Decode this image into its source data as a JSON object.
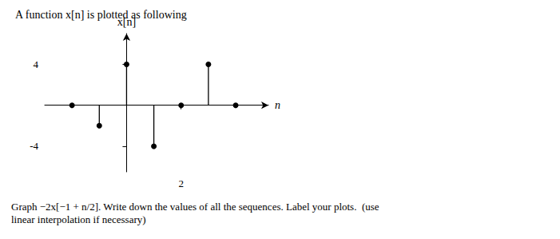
{
  "chart_data": {
    "type": "stem",
    "title": "A function x[n] is plotted as following",
    "annotations": [
      "Graph −2x[−1 + n/2]. Write down the values of all the sequences. Label your plots.  (use\nlinear interpolation if necessary)"
    ],
    "xlabel": "n",
    "ylabel": "x[n]",
    "x": [
      -2,
      -1,
      0,
      1,
      2,
      3,
      4
    ],
    "values": [
      0,
      -2,
      4,
      -4,
      0,
      4,
      0
    ],
    "color": "#000000",
    "marker": "circle",
    "xlim": [
      -3.0,
      5.2
    ],
    "xticks": [
      2
    ],
    "ylim": [
      -6.5,
      7.0
    ],
    "yticks": [
      -4,
      4
    ],
    "grid": false
  }
}
